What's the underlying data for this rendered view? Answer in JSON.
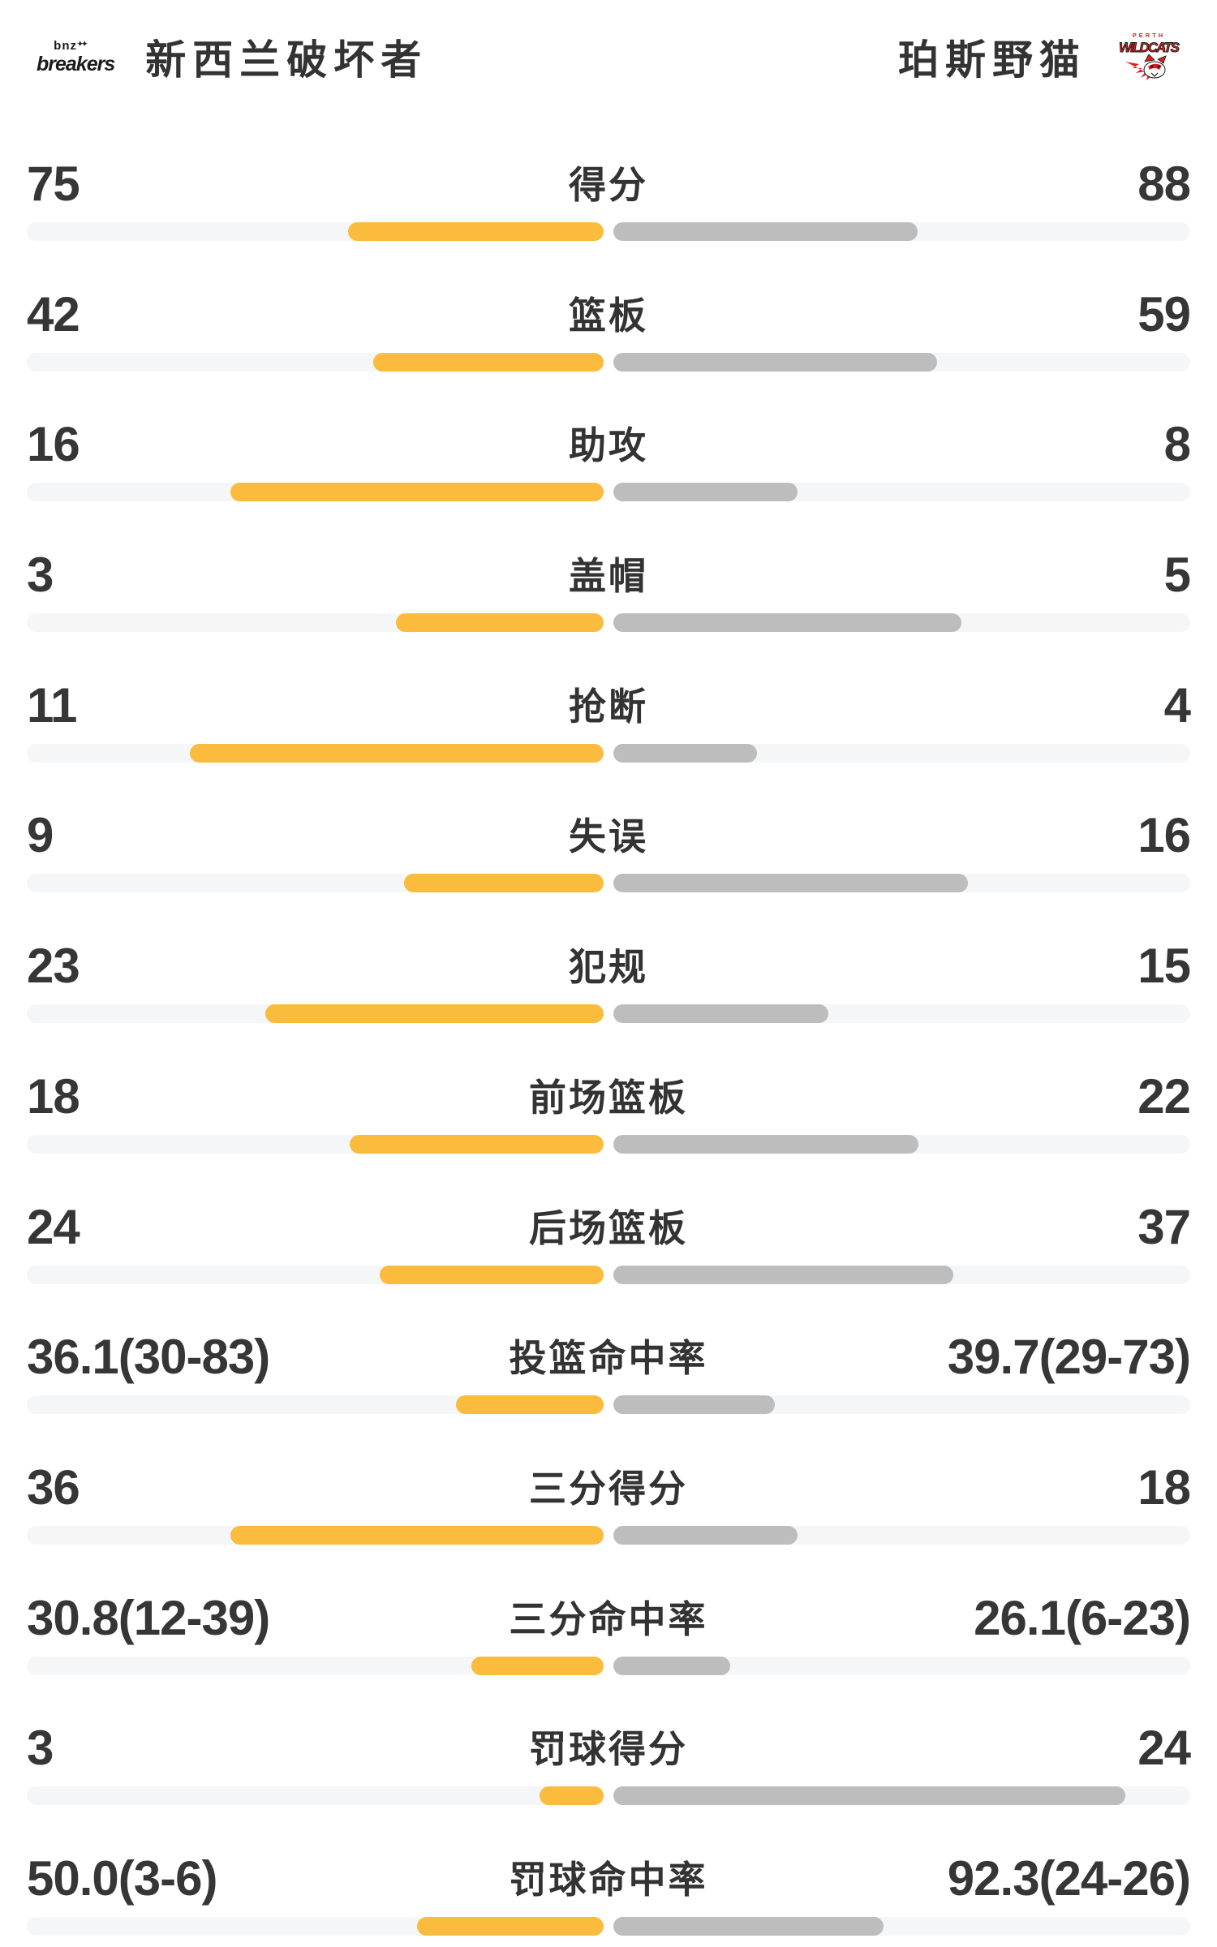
{
  "header": {
    "home_team": "新西兰破坏者",
    "away_team": "珀斯野猫",
    "home_logo": {
      "top": "bnz",
      "sparkle": "✦✦",
      "main": "breakers"
    },
    "away_logo": {
      "top": "PERTH",
      "main": "WILDCATS"
    }
  },
  "colors": {
    "home_bar": "#FBBB3C",
    "away_bar": "#BDBDBD",
    "bar_track": "#F5F6F8",
    "value_text": "#363636",
    "label_text": "#333333",
    "wildcats_red": "#D8211F",
    "background": "#FFFFFF"
  },
  "chart_data": {
    "type": "bar",
    "subtype": "horizontal-paired-team-comparison",
    "title": "新西兰破坏者 vs 珀斯野猫",
    "legend_position": "header",
    "grid": false,
    "series": [
      {
        "name": "新西兰破坏者",
        "color": "#FBBB3C",
        "side": "left"
      },
      {
        "name": "珀斯野猫",
        "color": "#BDBDBD",
        "side": "right"
      }
    ],
    "rows": [
      {
        "label": "得分",
        "left": "75",
        "right": "88",
        "left_num": 75,
        "right_num": 88,
        "left_bar_pct": 44.3,
        "right_bar_pct": 52.8
      },
      {
        "label": "篮板",
        "left": "42",
        "right": "59",
        "left_num": 42,
        "right_num": 59,
        "left_bar_pct": 40.0,
        "right_bar_pct": 56.1
      },
      {
        "label": "助攻",
        "left": "16",
        "right": "8",
        "left_num": 16,
        "right_num": 8,
        "left_bar_pct": 64.7,
        "right_bar_pct": 31.9
      },
      {
        "label": "盖帽",
        "left": "3",
        "right": "5",
        "left_num": 3,
        "right_num": 5,
        "left_bar_pct": 36.0,
        "right_bar_pct": 60.4
      },
      {
        "label": "抢断",
        "left": "11",
        "right": "4",
        "left_num": 11,
        "right_num": 4,
        "left_bar_pct": 71.7,
        "right_bar_pct": 24.9
      },
      {
        "label": "失误",
        "left": "9",
        "right": "16",
        "left_num": 9,
        "right_num": 16,
        "left_bar_pct": 34.6,
        "right_bar_pct": 61.5
      },
      {
        "label": "犯规",
        "left": "23",
        "right": "15",
        "left_num": 23,
        "right_num": 15,
        "left_bar_pct": 58.7,
        "right_bar_pct": 37.3
      },
      {
        "label": "前场篮板",
        "left": "18",
        "right": "22",
        "left_num": 18,
        "right_num": 22,
        "left_bar_pct": 44.0,
        "right_bar_pct": 52.9
      },
      {
        "label": "后场篮板",
        "left": "24",
        "right": "37",
        "left_num": 24,
        "right_num": 37,
        "left_bar_pct": 38.8,
        "right_bar_pct": 58.9
      },
      {
        "label": "投篮命中率",
        "left": "36.1(30-83)",
        "right": "39.7(29-73)",
        "left_num": 36.1,
        "right_num": 39.7,
        "left_bar_pct": 25.6,
        "right_bar_pct": 28.0
      },
      {
        "label": "三分得分",
        "left": "36",
        "right": "18",
        "left_num": 36,
        "right_num": 18,
        "left_bar_pct": 64.7,
        "right_bar_pct": 31.9
      },
      {
        "label": "三分命中率",
        "left": "30.8(12-39)",
        "right": "26.1(6-23)",
        "left_num": 30.8,
        "right_num": 26.1,
        "left_bar_pct": 22.9,
        "right_bar_pct": 20.3
      },
      {
        "label": "罚球得分",
        "left": "3",
        "right": "24",
        "left_num": 3,
        "right_num": 24,
        "left_bar_pct": 11.1,
        "right_bar_pct": 88.8
      },
      {
        "label": "罚球命中率",
        "left": "50.0(3-6)",
        "right": "92.3(24-26)",
        "left_num": 50.0,
        "right_num": 92.3,
        "left_bar_pct": 32.3,
        "right_bar_pct": 46.8
      }
    ]
  }
}
